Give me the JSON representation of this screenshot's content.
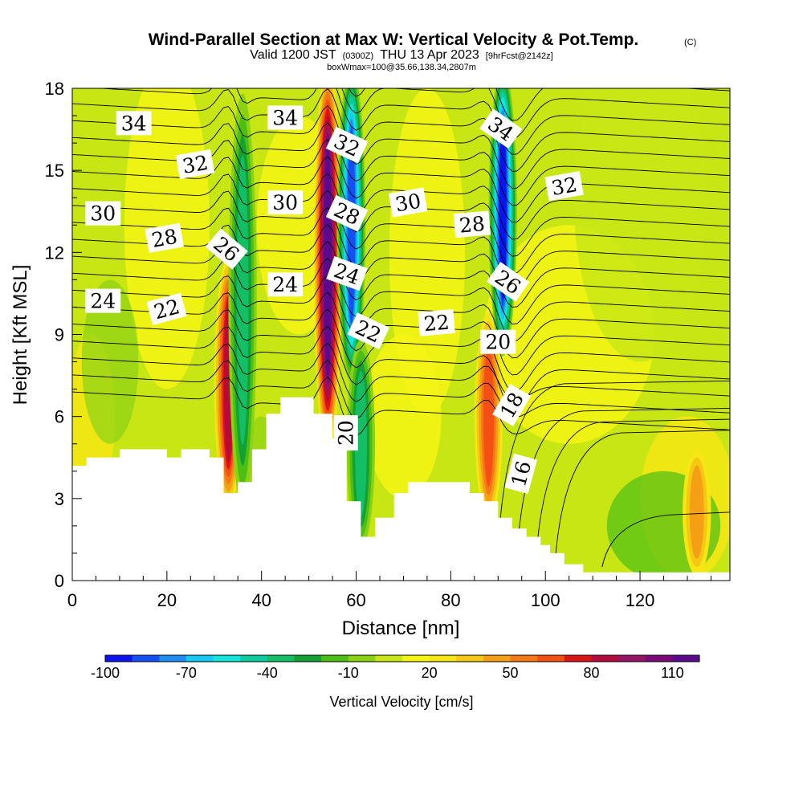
{
  "chart_data": {
    "type": "heatmap",
    "title": "Wind-Parallel Section at Max W: Vertical Velocity & Pot.Temp.",
    "copyright_mark": "(C)",
    "subtitle": {
      "valid_prefix": "Valid 1200 JST",
      "utc": "(0300Z)",
      "date": "THU 13 Apr 2023",
      "forecast": "[9hrFcst@2142z]"
    },
    "info_line": "boxWmax=100@35.66,138.34,2807m",
    "xlabel": "Distance [nm]",
    "ylabel": "Height [Kft MSL]",
    "xlim": [
      0,
      139
    ],
    "ylim": [
      0,
      18
    ],
    "x_ticks": [
      "0",
      "20",
      "40",
      "60",
      "80",
      "100",
      "120"
    ],
    "x_tick_values": [
      0,
      20,
      40,
      60,
      80,
      100,
      120
    ],
    "y_ticks": [
      "0",
      "3",
      "6",
      "9",
      "12",
      "15",
      "18"
    ],
    "y_tick_values": [
      0,
      3,
      6,
      9,
      12,
      15,
      18
    ],
    "colorbar": {
      "label": "Vertical Velocity [cm/s]",
      "min": -100,
      "max": 120,
      "step": 10,
      "tick_labels": [
        "-100",
        "-70",
        "-40",
        "-10",
        "20",
        "50",
        "80",
        "110"
      ],
      "tick_values": [
        -100,
        -70,
        -40,
        -10,
        20,
        50,
        80,
        110
      ],
      "colors": [
        "#0a14f0",
        "#1450f5",
        "#1e8cf5",
        "#14c8f5",
        "#14e6dc",
        "#0acca0",
        "#14be64",
        "#14a032",
        "#4cbe14",
        "#8cd214",
        "#c8e614",
        "#f5f514",
        "#f5e614",
        "#f5c814",
        "#f5a014",
        "#f57814",
        "#f55014",
        "#dc1414",
        "#b40a3c",
        "#961464",
        "#7a0a78",
        "#5a0a8c"
      ]
    },
    "terrain_kft": [
      [
        0,
        4.2
      ],
      [
        3,
        4.2
      ],
      [
        3,
        4.5
      ],
      [
        10,
        4.5
      ],
      [
        10,
        4.8
      ],
      [
        20,
        4.8
      ],
      [
        20,
        4.5
      ],
      [
        23,
        4.5
      ],
      [
        23,
        4.8
      ],
      [
        29,
        4.8
      ],
      [
        29,
        4.5
      ],
      [
        32,
        4.5
      ],
      [
        32,
        3.2
      ],
      [
        35,
        3.2
      ],
      [
        35,
        3.6
      ],
      [
        38,
        3.6
      ],
      [
        38,
        4.8
      ],
      [
        41,
        4.8
      ],
      [
        41,
        6.1
      ],
      [
        44,
        6.1
      ],
      [
        44,
        6.7
      ],
      [
        51,
        6.7
      ],
      [
        51,
        6.1
      ],
      [
        55,
        6.1
      ],
      [
        55,
        5.2
      ],
      [
        58,
        5.2
      ],
      [
        58,
        2.9
      ],
      [
        61,
        2.9
      ],
      [
        61,
        1.6
      ],
      [
        64,
        1.6
      ],
      [
        64,
        2.3
      ],
      [
        68,
        2.3
      ],
      [
        68,
        3.2
      ],
      [
        71,
        3.2
      ],
      [
        71,
        3.6
      ],
      [
        84,
        3.6
      ],
      [
        84,
        3.2
      ],
      [
        87,
        3.2
      ],
      [
        87,
        2.9
      ],
      [
        90,
        2.9
      ],
      [
        90,
        2.3
      ],
      [
        93,
        2.3
      ],
      [
        93,
        1.9
      ],
      [
        96,
        1.9
      ],
      [
        96,
        1.6
      ],
      [
        99,
        1.6
      ],
      [
        99,
        1.3
      ],
      [
        101,
        1.3
      ],
      [
        101,
        1.0
      ],
      [
        104,
        1.0
      ],
      [
        104,
        0.6
      ],
      [
        108,
        0.6
      ],
      [
        108,
        0.3
      ],
      [
        139,
        0.3
      ]
    ],
    "vertical_velocity_features": [
      {
        "x": 33,
        "y_range": [
          3.5,
          11
        ],
        "peak_cms": 80
      },
      {
        "x": 36,
        "y_range": [
          3.5,
          17
        ],
        "peak_cms": -40
      },
      {
        "x": 54,
        "y_range": [
          5.5,
          18
        ],
        "peak_cms": 110
      },
      {
        "x": 59,
        "y_range": [
          8,
          18
        ],
        "peak_cms": -90
      },
      {
        "x": 61,
        "y_range": [
          2,
          8
        ],
        "peak_cms": -40
      },
      {
        "x": 88,
        "y_range": [
          3,
          9
        ],
        "peak_cms": 60
      },
      {
        "x": 91,
        "y_range": [
          9,
          18
        ],
        "peak_cms": -100
      },
      {
        "x": 132,
        "y_range": [
          1,
          4
        ],
        "peak_cms": 40
      }
    ],
    "theta_contour_labels": [
      {
        "value": "34",
        "x": 13,
        "y": 16.7,
        "angle": 0
      },
      {
        "value": "34",
        "x": 45,
        "y": 16.9,
        "angle": 0
      },
      {
        "value": "34",
        "x": 90.5,
        "y": 16.5,
        "angle": 35
      },
      {
        "value": "32",
        "x": 26,
        "y": 15.2,
        "angle": -10
      },
      {
        "value": "32",
        "x": 58,
        "y": 15.9,
        "angle": 25
      },
      {
        "value": "32",
        "x": 104,
        "y": 14.4,
        "angle": -10
      },
      {
        "value": "30",
        "x": 6.5,
        "y": 13.4,
        "angle": 0
      },
      {
        "value": "30",
        "x": 45,
        "y": 13.8,
        "angle": 0
      },
      {
        "value": "30",
        "x": 71,
        "y": 13.8,
        "angle": -10
      },
      {
        "value": "28",
        "x": 19.5,
        "y": 12.5,
        "angle": -10
      },
      {
        "value": "28",
        "x": 58,
        "y": 13.4,
        "angle": 25
      },
      {
        "value": "28",
        "x": 84.5,
        "y": 13.0,
        "angle": -5
      },
      {
        "value": "26",
        "x": 32.5,
        "y": 12.1,
        "angle": 40
      },
      {
        "value": "26",
        "x": 92,
        "y": 10.9,
        "angle": 35
      },
      {
        "value": "24",
        "x": 6.5,
        "y": 10.2,
        "angle": 0
      },
      {
        "value": "24",
        "x": 45,
        "y": 10.8,
        "angle": 0
      },
      {
        "value": "24",
        "x": 58,
        "y": 11.2,
        "angle": 20
      },
      {
        "value": "22",
        "x": 20,
        "y": 9.9,
        "angle": -15
      },
      {
        "value": "22",
        "x": 62.5,
        "y": 9.1,
        "angle": 25
      },
      {
        "value": "22",
        "x": 77,
        "y": 9.4,
        "angle": -5
      },
      {
        "value": "20",
        "x": 90,
        "y": 8.7,
        "angle": 0
      },
      {
        "value": "20",
        "x": 58,
        "y": 5.4,
        "angle": -90
      },
      {
        "value": "18",
        "x": 93,
        "y": 6.4,
        "angle": -60
      },
      {
        "value": "16",
        "x": 95,
        "y": 3.9,
        "angle": -75
      }
    ]
  }
}
